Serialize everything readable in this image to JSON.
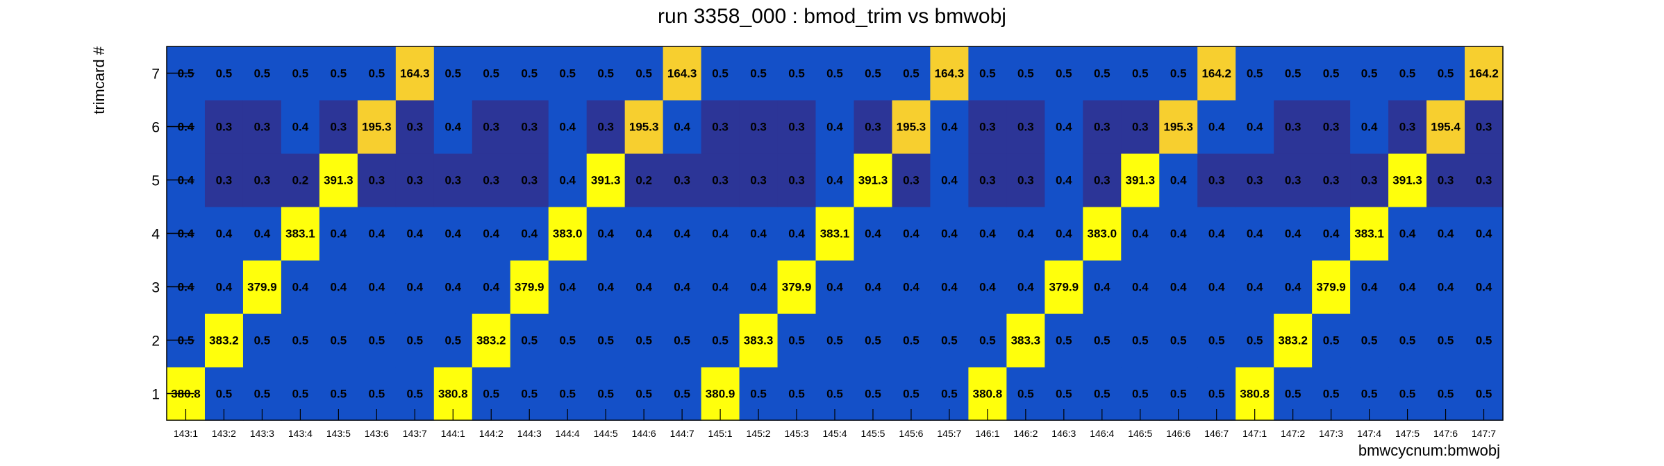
{
  "chart_data": {
    "type": "heatmap",
    "title": "run 3358_000 : bmod_trim vs bmwobj",
    "xlabel": "bmwcycnum:bmwobj",
    "ylabel": "trimcard #",
    "x_categories": [
      "143:1",
      "143:2",
      "143:3",
      "143:4",
      "143:5",
      "143:6",
      "143:7",
      "144:1",
      "144:2",
      "144:3",
      "144:4",
      "144:5",
      "144:6",
      "144:7",
      "145:1",
      "145:2",
      "145:3",
      "145:4",
      "145:5",
      "145:6",
      "145:7",
      "146:1",
      "146:2",
      "146:3",
      "146:4",
      "146:5",
      "146:6",
      "146:7",
      "147:1",
      "147:2",
      "147:3",
      "147:4",
      "147:5",
      "147:6",
      "147:7"
    ],
    "y_categories": [
      "1",
      "2",
      "3",
      "4",
      "5",
      "6",
      "7"
    ],
    "values": [
      [
        "380.8",
        "0.5",
        "0.5",
        "0.5",
        "0.5",
        "0.5",
        "0.5",
        "380.8",
        "0.5",
        "0.5",
        "0.5",
        "0.5",
        "0.5",
        "0.5",
        "380.9",
        "0.5",
        "0.5",
        "0.5",
        "0.5",
        "0.5",
        "0.5",
        "380.8",
        "0.5",
        "0.5",
        "0.5",
        "0.5",
        "0.5",
        "0.5",
        "380.8",
        "0.5",
        "0.5",
        "0.5",
        "0.5",
        "0.5",
        "0.5"
      ],
      [
        "0.5",
        "383.2",
        "0.5",
        "0.5",
        "0.5",
        "0.5",
        "0.5",
        "0.5",
        "383.2",
        "0.5",
        "0.5",
        "0.5",
        "0.5",
        "0.5",
        "0.5",
        "383.3",
        "0.5",
        "0.5",
        "0.5",
        "0.5",
        "0.5",
        "0.5",
        "383.3",
        "0.5",
        "0.5",
        "0.5",
        "0.5",
        "0.5",
        "0.5",
        "383.2",
        "0.5",
        "0.5",
        "0.5",
        "0.5",
        "0.5"
      ],
      [
        "0.4",
        "0.4",
        "379.9",
        "0.4",
        "0.4",
        "0.4",
        "0.4",
        "0.4",
        "0.4",
        "379.9",
        "0.4",
        "0.4",
        "0.4",
        "0.4",
        "0.4",
        "0.4",
        "379.9",
        "0.4",
        "0.4",
        "0.4",
        "0.4",
        "0.4",
        "0.4",
        "379.9",
        "0.4",
        "0.4",
        "0.4",
        "0.4",
        "0.4",
        "0.4",
        "379.9",
        "0.4",
        "0.4",
        "0.4",
        "0.4"
      ],
      [
        "0.4",
        "0.4",
        "0.4",
        "383.1",
        "0.4",
        "0.4",
        "0.4",
        "0.4",
        "0.4",
        "0.4",
        "383.0",
        "0.4",
        "0.4",
        "0.4",
        "0.4",
        "0.4",
        "0.4",
        "383.1",
        "0.4",
        "0.4",
        "0.4",
        "0.4",
        "0.4",
        "0.4",
        "383.0",
        "0.4",
        "0.4",
        "0.4",
        "0.4",
        "0.4",
        "0.4",
        "383.1",
        "0.4",
        "0.4",
        "0.4"
      ],
      [
        "0.4",
        "0.3",
        "0.3",
        "0.2",
        "391.3",
        "0.3",
        "0.3",
        "0.3",
        "0.3",
        "0.3",
        "0.4",
        "391.3",
        "0.2",
        "0.3",
        "0.3",
        "0.3",
        "0.3",
        "0.4",
        "391.3",
        "0.3",
        "0.4",
        "0.3",
        "0.3",
        "0.4",
        "0.3",
        "391.3",
        "0.4",
        "0.3",
        "0.3",
        "0.3",
        "0.3",
        "0.3",
        "391.3",
        "0.3",
        "0.3"
      ],
      [
        "0.4",
        "0.3",
        "0.3",
        "0.4",
        "0.3",
        "195.3",
        "0.3",
        "0.4",
        "0.3",
        "0.3",
        "0.4",
        "0.3",
        "195.3",
        "0.4",
        "0.3",
        "0.3",
        "0.3",
        "0.4",
        "0.3",
        "195.3",
        "0.4",
        "0.3",
        "0.3",
        "0.4",
        "0.3",
        "0.3",
        "195.3",
        "0.4",
        "0.4",
        "0.3",
        "0.3",
        "0.4",
        "0.3",
        "195.4",
        "0.3"
      ],
      [
        "0.5",
        "0.5",
        "0.5",
        "0.5",
        "0.5",
        "0.5",
        "164.3",
        "0.5",
        "0.5",
        "0.5",
        "0.5",
        "0.5",
        "0.5",
        "164.3",
        "0.5",
        "0.5",
        "0.5",
        "0.5",
        "0.5",
        "0.5",
        "164.3",
        "0.5",
        "0.5",
        "0.5",
        "0.5",
        "0.5",
        "0.5",
        "164.2",
        "0.5",
        "0.5",
        "0.5",
        "0.5",
        "0.5",
        "0.5",
        "164.2"
      ]
    ],
    "colors": {
      "low_dark": "#2c3597",
      "low": "#1450c8",
      "mid": "#f7cf2f",
      "high": "#ffff0c"
    },
    "grid": false,
    "legend": "none"
  }
}
